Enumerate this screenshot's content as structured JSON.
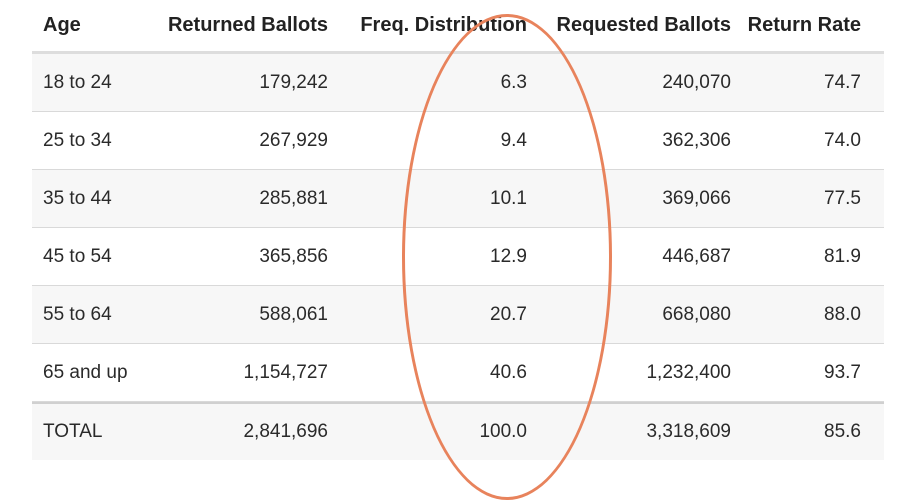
{
  "table": {
    "headers": [
      "Age",
      "Returned Ballots",
      "Freq. Distribution",
      "Requested Ballots",
      "Return Rate"
    ],
    "rows": [
      [
        "18 to 24",
        "179,242",
        "6.3",
        "240,070",
        "74.7"
      ],
      [
        "25 to 34",
        "267,929",
        "9.4",
        "362,306",
        "74.0"
      ],
      [
        "35 to 44",
        "285,881",
        "10.1",
        "369,066",
        "77.5"
      ],
      [
        "45 to 54",
        "365,856",
        "12.9",
        "446,687",
        "81.9"
      ],
      [
        "55 to 64",
        "588,061",
        "20.7",
        "668,080",
        "88.0"
      ],
      [
        "65 and up",
        "1,154,727",
        "40.6",
        "1,232,400",
        "93.7"
      ]
    ],
    "total": [
      "TOTAL",
      "2,841,696",
      "100.0",
      "3,318,609",
      "85.6"
    ]
  },
  "annotation": {
    "type": "oval-highlight",
    "target_column": "Freq. Distribution",
    "color": "#e8835c"
  },
  "colors": {
    "stripe": "#f7f7f7",
    "border": "#dddddd"
  }
}
